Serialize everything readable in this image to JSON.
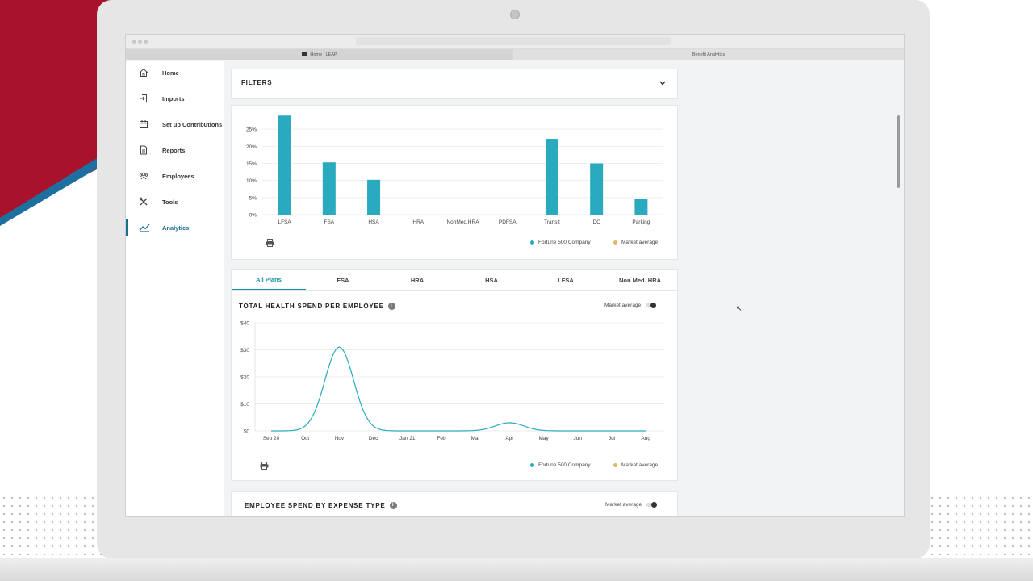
{
  "browser": {
    "tabs": [
      {
        "label": "Home | LEAP",
        "active": true
      },
      {
        "label": "Benefit Analytics",
        "active": false
      }
    ]
  },
  "sidebar": {
    "items": [
      {
        "label": "Home",
        "icon": "home-icon"
      },
      {
        "label": "Imports",
        "icon": "import-icon"
      },
      {
        "label": "Set up Contributions",
        "icon": "calendar-icon"
      },
      {
        "label": "Reports",
        "icon": "document-icon"
      },
      {
        "label": "Employees",
        "icon": "people-icon"
      },
      {
        "label": "Tools",
        "icon": "tools-icon"
      },
      {
        "label": "Analytics",
        "icon": "analytics-icon",
        "active": true
      }
    ]
  },
  "filters": {
    "title": "FILTERS"
  },
  "colors": {
    "teal": "#2aaabf",
    "market": "#e8b26a",
    "accent": "#1b8ea8"
  },
  "legend": {
    "company": "Fortune 500 Company",
    "market": "Market average"
  },
  "plan_tabs": [
    "All Plans",
    "FSA",
    "HRA",
    "HSA",
    "LFSA",
    "Non Med. HRA"
  ],
  "health_spend": {
    "title": "TOTAL HEALTH SPEND PER EMPLOYEE",
    "toggle_label": "Market average"
  },
  "expense_type": {
    "title": "EMPLOYEE SPEND BY EXPENSE TYPE",
    "toggle_label": "Market average"
  },
  "chart_data": [
    {
      "type": "bar",
      "categories": [
        "LFSA",
        "FSA",
        "HSA",
        "HRA",
        "NonMed.HRA",
        "PDFSA",
        "Transit",
        "DC",
        "Parking"
      ],
      "series": [
        {
          "name": "Fortune 500 Company",
          "values": [
            29,
            15.3,
            10.2,
            0,
            0,
            0,
            22.2,
            15,
            4.5
          ]
        }
      ],
      "ytick_labels": [
        "0%",
        "5%",
        "10%",
        "15%",
        "20%",
        "25%"
      ],
      "ylim": [
        0,
        30
      ]
    },
    {
      "type": "line",
      "x": [
        "Sep 20",
        "Oct",
        "Nov",
        "Dec",
        "Jan 21",
        "Feb",
        "Mar",
        "Apr",
        "May",
        "Jun",
        "Jul",
        "Aug"
      ],
      "series": [
        {
          "name": "Fortune 500 Company",
          "values": [
            0,
            0,
            31,
            0,
            0,
            0,
            0,
            3,
            0,
            0,
            0,
            0
          ]
        }
      ],
      "ytick_labels": [
        "$0",
        "$10",
        "$20",
        "$30",
        "$40"
      ],
      "ylim": [
        0,
        40
      ]
    }
  ]
}
